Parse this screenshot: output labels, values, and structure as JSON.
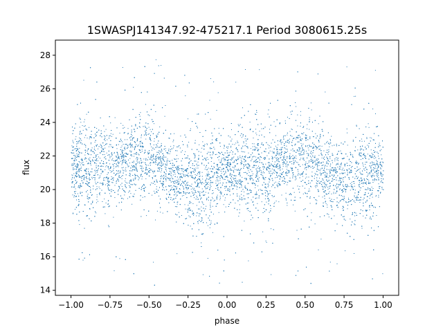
{
  "chart_data": {
    "type": "scatter",
    "title": "1SWASPJ141347.92-475217.1 Period 3080615.25s",
    "xlabel": "phase",
    "ylabel": "flux",
    "xlim": [
      -1.1,
      1.1
    ],
    "ylim": [
      13.7,
      28.9
    ],
    "xticks": [
      -1.0,
      -0.75,
      -0.5,
      -0.25,
      0.0,
      0.25,
      0.5,
      0.75,
      1.0
    ],
    "xtick_labels": [
      "−1.00",
      "−0.75",
      "−0.50",
      "−0.25",
      "0.00",
      "0.25",
      "0.50",
      "0.75",
      "1.00"
    ],
    "yticks": [
      14,
      16,
      18,
      20,
      22,
      24,
      26,
      28
    ],
    "ytick_labels": [
      "14",
      "16",
      "18",
      "20",
      "22",
      "24",
      "26",
      "28"
    ],
    "grid": false,
    "marker_color": "#1f77b4",
    "series": [
      {
        "phase_range": [
          -1.0,
          1.0
        ],
        "median_flux": 21.2,
        "core_band": [
          19.0,
          23.5
        ],
        "flux_range": [
          14.3,
          28.2
        ],
        "notes_phase_points": [
          {
            "x": -1.0,
            "y": 21.3
          },
          {
            "x": -0.75,
            "y": 21.4
          },
          {
            "x": -0.65,
            "y": 21.8
          },
          {
            "x": -0.5,
            "y": 21.8
          },
          {
            "x": -0.25,
            "y": 20.4
          },
          {
            "x": 0.0,
            "y": 21.0
          },
          {
            "x": 0.25,
            "y": 21.2
          },
          {
            "x": 0.35,
            "y": 21.8
          },
          {
            "x": 0.5,
            "y": 21.8
          },
          {
            "x": 0.75,
            "y": 20.4
          },
          {
            "x": 1.0,
            "y": 21.0
          }
        ]
      }
    ]
  }
}
